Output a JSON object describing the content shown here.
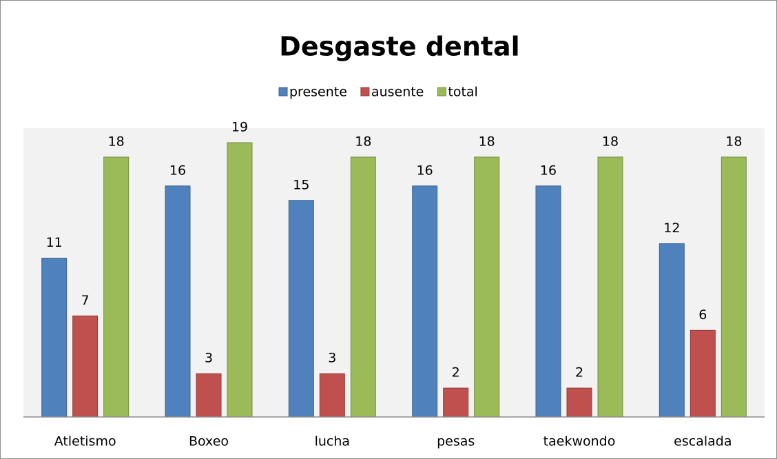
{
  "chart_data": {
    "type": "bar",
    "title": "Desgaste dental",
    "categories": [
      "Atletismo",
      "Boxeo",
      "lucha",
      "pesas",
      "taekwondo",
      "escalada"
    ],
    "series": [
      {
        "name": "presente",
        "color": "#4f81bd",
        "values": [
          11,
          16,
          15,
          16,
          16,
          12
        ]
      },
      {
        "name": "ausente",
        "color": "#c0504d",
        "values": [
          7,
          3,
          3,
          2,
          2,
          6
        ]
      },
      {
        "name": "total",
        "color": "#9bbb59",
        "values": [
          18,
          19,
          18,
          18,
          18,
          18
        ]
      }
    ],
    "ylim": [
      0,
      20
    ],
    "legend": "top"
  }
}
